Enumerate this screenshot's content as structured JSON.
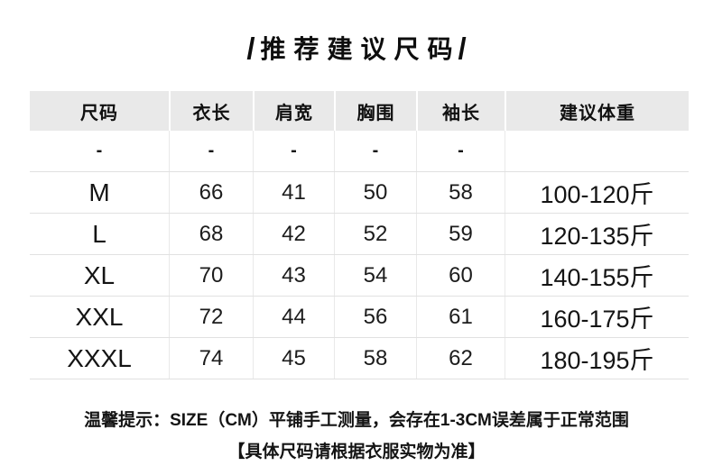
{
  "title": {
    "slash_left": "/",
    "text": "推荐建议尺码",
    "slash_right": "/"
  },
  "table": {
    "columns": [
      "尺码",
      "衣长",
      "肩宽",
      "胸围",
      "袖长",
      "建议体重"
    ],
    "rows": [
      {
        "cells": [
          "-",
          "-",
          "-",
          "-",
          "-",
          ""
        ]
      },
      {
        "cells": [
          "M",
          "66",
          "41",
          "50",
          "58",
          "100-120斤"
        ]
      },
      {
        "cells": [
          "L",
          "68",
          "42",
          "52",
          "59",
          "120-135斤"
        ]
      },
      {
        "cells": [
          "XL",
          "70",
          "43",
          "54",
          "60",
          "140-155斤"
        ]
      },
      {
        "cells": [
          "XXL",
          "72",
          "44",
          "56",
          "61",
          "160-175斤"
        ]
      },
      {
        "cells": [
          "XXXL",
          "74",
          "45",
          "58",
          "62",
          "180-195斤"
        ]
      }
    ]
  },
  "footer": {
    "line1": "温馨提示：SIZE（CM）平铺手工测量，会存在1-3CM误差属于正常范围",
    "line2": "【具体尺码请根据衣服实物为准】"
  },
  "colors": {
    "header_bg": "#e9e9e9",
    "row_border": "#e1e1e1",
    "column_border": "#e9e9e9",
    "text": "#141414",
    "background": "#ffffff"
  }
}
